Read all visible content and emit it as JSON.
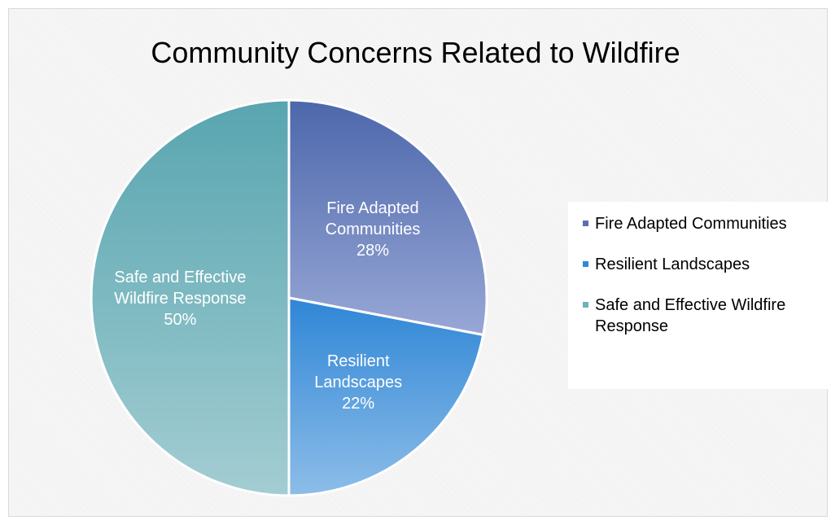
{
  "chart_data": {
    "type": "pie",
    "title": "Community Concerns Related to Wildfire",
    "slices": [
      {
        "name": "Fire Adapted Communities",
        "value": 28,
        "label_lines": [
          "Fire Adapted",
          "Communities",
          "28%"
        ],
        "color_top": "#4c67ab",
        "color_bottom": "#98a7d6"
      },
      {
        "name": "Resilient Landscapes",
        "value": 22,
        "label_lines": [
          "Resilient",
          "Landscapes",
          "22%"
        ],
        "color_top": "#2f86d6",
        "color_bottom": "#8dbde8"
      },
      {
        "name": "Safe and Effective Wildfire Response",
        "value": 50,
        "label_lines": [
          "Safe and Effective",
          "Wildfire Response",
          "50%"
        ],
        "color_top": "#58a5b0",
        "color_bottom": "#a3cdd2"
      }
    ],
    "legend_position": "right",
    "legend_entries": [
      "Fire Adapted Communities",
      "Resilient Landscapes",
      "Safe and Effective Wildfire Response"
    ],
    "legend_colors": [
      "#5a6fae",
      "#2f8ad8",
      "#6fb1b9"
    ]
  }
}
